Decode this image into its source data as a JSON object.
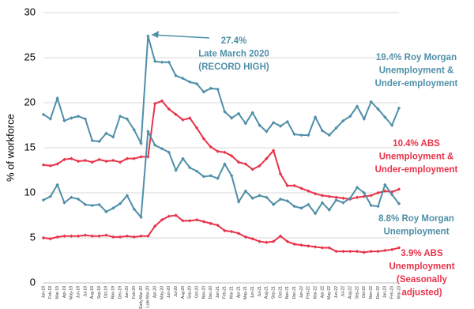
{
  "chart_data": {
    "type": "line",
    "y_label": "% of workforce",
    "categories": [
      "Jan-19",
      "Feb-19",
      "Mar-19",
      "Apr-19",
      "May-19",
      "Jun-19",
      "Jul-19",
      "Aug-19",
      "Sep-19",
      "Oct-19",
      "Nov-19",
      "Dec-19",
      "Jan-20",
      "Feb-20",
      "Early Mar-20",
      "Late Mar-20",
      "Apr-20",
      "May-20",
      "Jun-20",
      "Jul-20",
      "Aug-20",
      "Sep-20",
      "Oct-20",
      "Nov-20",
      "Dec-20",
      "Jan-21",
      "Feb-21",
      "Mar-21",
      "Apr-21",
      "May-21",
      "Jun-21",
      "Jul-21",
      "Aug-21",
      "Sep-21",
      "Oct-21",
      "Nov-21",
      "Dec-21",
      "Jan-22",
      "Feb-22",
      "Mar-22",
      "Apr-22",
      "May-22",
      "Jun-22",
      "Jul-22",
      "Aug-22",
      "Sep-22",
      "Oct-22",
      "Nov-22",
      "Dec-22",
      "Jan-23",
      "Feb-23",
      "Mar-23"
    ],
    "series": [
      {
        "color": "#4f8fa8",
        "values": [
          18.7,
          18.2,
          20.5,
          18.0,
          18.3,
          18.5,
          18.2,
          15.8,
          15.7,
          16.6,
          16.2,
          18.5,
          18.2,
          17.0,
          15.5,
          27.4,
          24.6,
          24.5,
          24.5,
          23.0,
          22.7,
          22.3,
          22.1,
          21.2,
          21.6,
          21.5,
          19.0,
          18.3,
          18.8,
          17.7,
          18.9,
          17.5,
          16.8,
          17.8,
          17.4,
          17.9,
          16.5,
          16.4,
          16.4,
          18.4,
          16.9,
          16.4,
          17.2,
          18.0,
          18.5,
          19.6,
          18.2,
          20.1,
          19.3,
          18.4,
          17.5,
          19.4
        ]
      },
      {
        "color": "#e8334a",
        "values": [
          13.1,
          13.0,
          13.2,
          13.7,
          13.8,
          13.5,
          13.6,
          13.4,
          13.7,
          13.5,
          13.6,
          13.4,
          13.8,
          13.8,
          14.0,
          14.0,
          19.9,
          20.2,
          19.3,
          18.7,
          18.1,
          18.3,
          17.2,
          16.0,
          15.1,
          14.6,
          14.5,
          14.1,
          13.4,
          13.2,
          12.6,
          13.0,
          13.8,
          14.7,
          12.1,
          10.8,
          10.8,
          10.5,
          10.2,
          9.9,
          9.7,
          9.6,
          9.5,
          9.4,
          9.3,
          9.5,
          9.6,
          9.7,
          10.0,
          10.2,
          10.1,
          10.4
        ]
      },
      {
        "color": "#4f8fa8",
        "values": [
          9.2,
          9.6,
          10.9,
          8.9,
          9.5,
          9.3,
          8.7,
          8.6,
          8.7,
          7.9,
          8.3,
          8.8,
          9.7,
          8.2,
          7.3,
          16.8,
          15.3,
          14.9,
          14.5,
          12.5,
          13.8,
          12.8,
          12.4,
          11.8,
          11.9,
          11.6,
          13.2,
          11.9,
          9.0,
          10.2,
          9.4,
          9.7,
          9.5,
          8.7,
          9.3,
          9.1,
          8.5,
          8.3,
          8.7,
          7.7,
          8.9,
          8.1,
          9.2,
          8.9,
          9.4,
          10.6,
          10.0,
          8.6,
          8.5,
          10.9,
          9.8,
          8.8
        ]
      },
      {
        "color": "#e8334a",
        "values": [
          5.0,
          4.9,
          5.1,
          5.2,
          5.2,
          5.2,
          5.3,
          5.2,
          5.2,
          5.3,
          5.1,
          5.1,
          5.2,
          5.1,
          5.2,
          5.2,
          6.3,
          7.0,
          7.4,
          7.5,
          6.9,
          6.9,
          7.0,
          6.8,
          6.6,
          6.4,
          5.8,
          5.7,
          5.5,
          5.1,
          4.9,
          4.6,
          4.5,
          4.6,
          5.2,
          4.6,
          4.3,
          4.2,
          4.1,
          4.0,
          3.9,
          3.9,
          3.5,
          3.5,
          3.5,
          3.5,
          3.4,
          3.5,
          3.5,
          3.6,
          3.7,
          3.9
        ]
      }
    ],
    "annotations": [
      {
        "color": "#4f8fa8",
        "lines": [
          "27.4%",
          "Late March 2020",
          "(RECORD HIGH)"
        ]
      },
      {
        "color": "#4f8fa8",
        "lines": [
          "19.4% Roy Morgan",
          "Unemployment &",
          "Under-employment"
        ]
      },
      {
        "color": "#e8334a",
        "lines": [
          "10.4% ABS",
          "Unemployment &",
          "Under-employment"
        ]
      },
      {
        "color": "#4f8fa8",
        "lines": [
          "8.8% Roy Morgan",
          "Unemployment"
        ]
      },
      {
        "color": "#e8334a",
        "lines": [
          "3.9% ABS",
          "Unemployment",
          "(Seasonally",
          "adjusted)"
        ]
      }
    ],
    "ylim": [
      0,
      30
    ],
    "yticks": [
      0,
      5,
      10,
      15,
      20,
      25,
      30
    ],
    "grid": true
  }
}
